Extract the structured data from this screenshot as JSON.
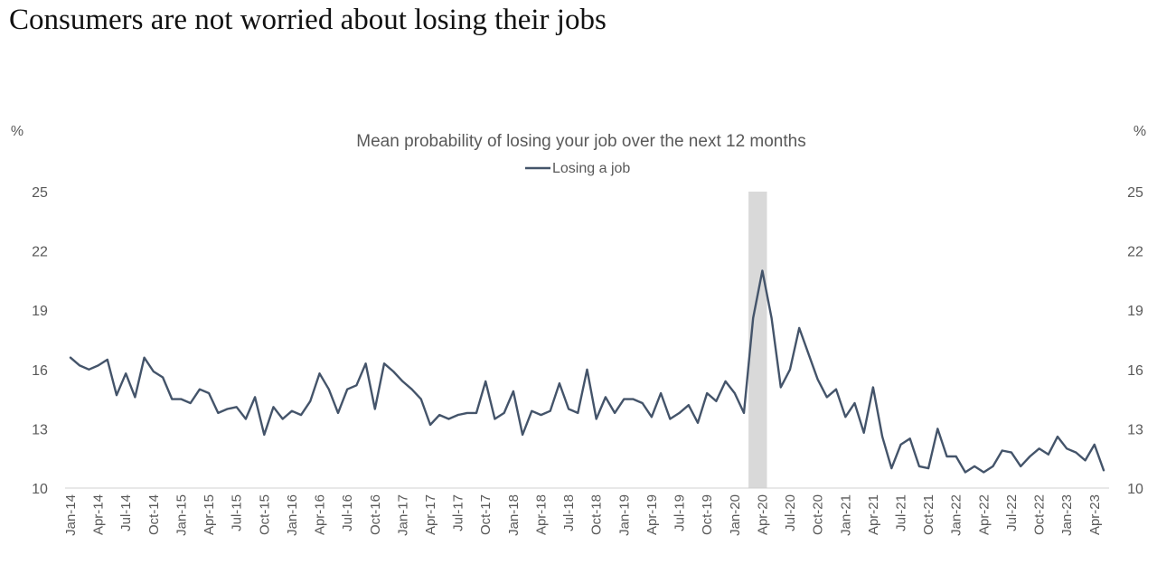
{
  "page": {
    "headline": "Consumers are not worried about losing their jobs"
  },
  "chart_data": {
    "type": "line",
    "title": "Mean probability of losing your job over the next 12 months",
    "left_axis_unit": "%",
    "right_axis_unit": "%",
    "legend": [
      "Losing a job"
    ],
    "legend_position": "top-center",
    "ylim": [
      10,
      25
    ],
    "yticks": [
      "10",
      "13",
      "16",
      "19",
      "22",
      "25"
    ],
    "x_tick_labels": [
      "Jan-14",
      "Apr-14",
      "Jul-14",
      "Oct-14",
      "Jan-15",
      "Apr-15",
      "Jul-15",
      "Oct-15",
      "Jan-16",
      "Apr-16",
      "Jul-16",
      "Oct-16",
      "Jan-17",
      "Apr-17",
      "Jul-17",
      "Oct-17",
      "Jan-18",
      "Apr-18",
      "Jul-18",
      "Oct-18",
      "Jan-19",
      "Apr-19",
      "Jul-19",
      "Oct-19",
      "Jan-20",
      "Apr-20",
      "Jul-20",
      "Oct-20",
      "Jan-21",
      "Apr-21",
      "Jul-21",
      "Oct-21",
      "Jan-22",
      "Apr-22",
      "Jul-22",
      "Oct-22",
      "Jan-23",
      "Apr-23"
    ],
    "recession_shading": {
      "start_index": 74,
      "end_index": 75
    },
    "series": [
      {
        "name": "Losing a job",
        "color": "#44546A",
        "start": "Jan-14",
        "frequency": "monthly",
        "values": [
          16.6,
          16.2,
          16.0,
          16.2,
          16.5,
          14.7,
          15.8,
          14.6,
          16.6,
          15.9,
          15.6,
          14.5,
          14.5,
          14.3,
          15.0,
          14.8,
          13.8,
          14.0,
          14.1,
          13.5,
          14.6,
          12.7,
          14.1,
          13.5,
          13.9,
          13.7,
          14.4,
          15.8,
          15.0,
          13.8,
          15.0,
          15.2,
          16.3,
          14.0,
          16.3,
          15.9,
          15.4,
          15.0,
          14.5,
          13.2,
          13.7,
          13.5,
          13.7,
          13.8,
          13.8,
          15.4,
          13.5,
          13.8,
          14.9,
          12.7,
          13.9,
          13.7,
          13.9,
          15.3,
          14.0,
          13.8,
          16.0,
          13.5,
          14.6,
          13.8,
          14.5,
          14.5,
          14.3,
          13.6,
          14.8,
          13.5,
          13.8,
          14.2,
          13.3,
          14.8,
          14.4,
          15.4,
          14.8,
          13.8,
          18.6,
          21.0,
          18.6,
          15.1,
          16.0,
          18.1,
          16.8,
          15.5,
          14.6,
          15.0,
          13.6,
          14.3,
          12.8,
          15.1,
          12.6,
          11.0,
          12.2,
          12.5,
          11.1,
          11.0,
          13.0,
          11.6,
          11.6,
          10.8,
          11.1,
          10.8,
          11.1,
          11.9,
          11.8,
          11.1,
          11.6,
          12.0,
          11.7,
          12.6,
          12.0,
          11.8,
          11.4,
          12.2,
          10.9
        ]
      }
    ]
  }
}
